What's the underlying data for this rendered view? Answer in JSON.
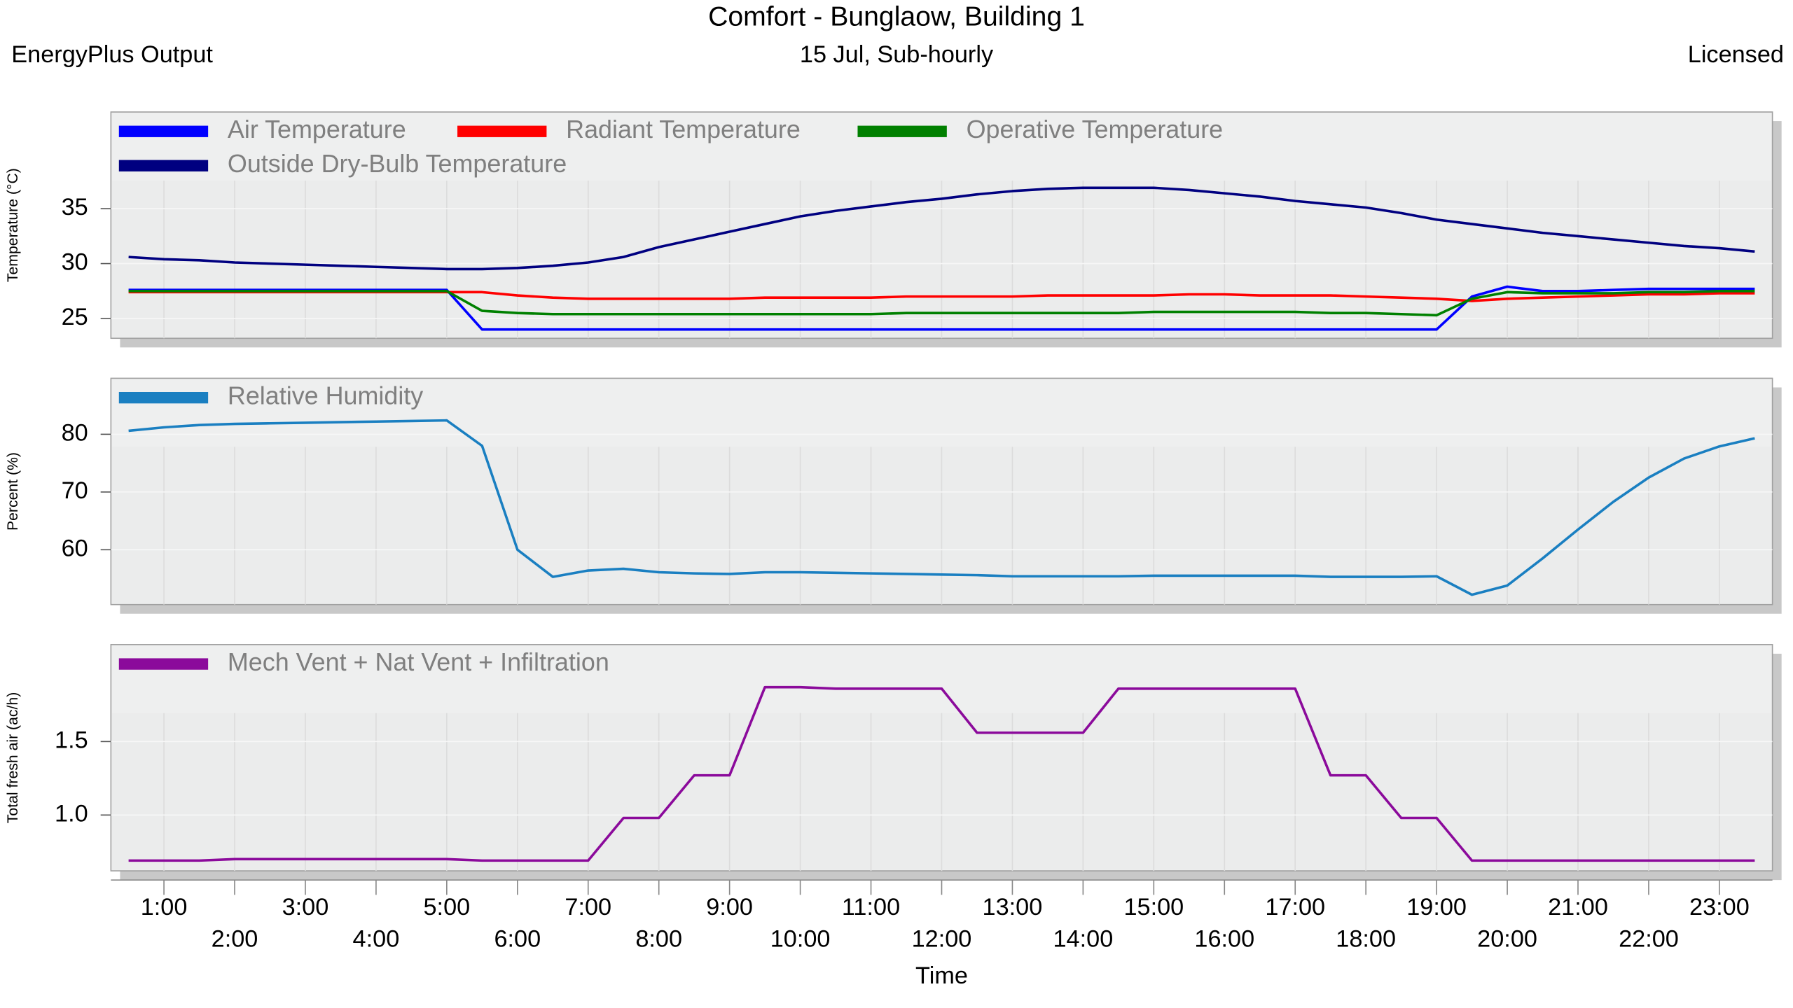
{
  "header": {
    "title": "Comfort - Bunglaow, Building 1",
    "left": "EnergyPlus Output",
    "center": "15 Jul, Sub-hourly",
    "right": "Licensed"
  },
  "chart_data": [
    {
      "type": "line",
      "y_label": "Temperature (°C)",
      "xlim": [
        0.25,
        23.75
      ],
      "ylim": [
        23.2,
        43.8
      ],
      "yticks": [
        35,
        30,
        25
      ],
      "x": [
        0.5,
        1,
        1.5,
        2,
        2.5,
        3,
        3.5,
        4,
        4.5,
        5,
        5.5,
        6,
        6.5,
        7,
        7.5,
        8,
        8.5,
        9,
        9.5,
        10,
        10.5,
        11,
        11.5,
        12,
        12.5,
        13,
        13.5,
        14,
        14.5,
        15,
        15.5,
        16,
        16.5,
        17,
        17.5,
        18,
        18.5,
        19,
        19.5,
        20,
        20.5,
        21,
        21.5,
        22,
        22.5,
        23,
        23.5
      ],
      "series": [
        {
          "name": "Air Temperature",
          "color": "#0000ff",
          "values": [
            27.6,
            27.6,
            27.6,
            27.6,
            27.6,
            27.6,
            27.6,
            27.6,
            27.6,
            27.6,
            24.0,
            24.0,
            24.0,
            24.0,
            24.0,
            24.0,
            24.0,
            24.0,
            24.0,
            24.0,
            24.0,
            24.0,
            24.0,
            24.0,
            24.0,
            24.0,
            24.0,
            24.0,
            24.0,
            24.0,
            24.0,
            24.0,
            24.0,
            24.0,
            24.0,
            24.0,
            24.0,
            24.0,
            27.0,
            27.9,
            27.5,
            27.5,
            27.6,
            27.7,
            27.7,
            27.7,
            27.7
          ]
        },
        {
          "name": "Radiant Temperature",
          "color": "#ff0000",
          "values": [
            27.4,
            27.4,
            27.4,
            27.4,
            27.4,
            27.4,
            27.4,
            27.4,
            27.4,
            27.4,
            27.4,
            27.1,
            26.9,
            26.8,
            26.8,
            26.8,
            26.8,
            26.8,
            26.9,
            26.9,
            26.9,
            26.9,
            27.0,
            27.0,
            27.0,
            27.0,
            27.1,
            27.1,
            27.1,
            27.1,
            27.2,
            27.2,
            27.1,
            27.1,
            27.1,
            27.0,
            26.9,
            26.8,
            26.6,
            26.8,
            26.9,
            27.0,
            27.1,
            27.2,
            27.2,
            27.3,
            27.3
          ]
        },
        {
          "name": "Operative Temperature",
          "color": "#008000",
          "values": [
            27.5,
            27.5,
            27.5,
            27.5,
            27.5,
            27.5,
            27.5,
            27.5,
            27.5,
            27.5,
            25.7,
            25.5,
            25.4,
            25.4,
            25.4,
            25.4,
            25.4,
            25.4,
            25.4,
            25.4,
            25.4,
            25.4,
            25.5,
            25.5,
            25.5,
            25.5,
            25.5,
            25.5,
            25.5,
            25.6,
            25.6,
            25.6,
            25.6,
            25.6,
            25.5,
            25.5,
            25.4,
            25.3,
            26.8,
            27.4,
            27.3,
            27.3,
            27.3,
            27.4,
            27.4,
            27.5,
            27.5
          ]
        },
        {
          "name": "Outside Dry-Bulb Temperature",
          "color": "#000080",
          "values": [
            30.6,
            30.4,
            30.3,
            30.1,
            30.0,
            29.9,
            29.8,
            29.7,
            29.6,
            29.5,
            29.5,
            29.6,
            29.8,
            30.1,
            30.6,
            31.5,
            32.2,
            32.9,
            33.6,
            34.3,
            34.8,
            35.2,
            35.6,
            35.9,
            36.3,
            36.6,
            36.8,
            36.9,
            36.9,
            36.9,
            36.7,
            36.4,
            36.1,
            35.7,
            35.4,
            35.1,
            34.6,
            34.0,
            33.6,
            33.2,
            32.8,
            32.5,
            32.2,
            31.9,
            31.6,
            31.4,
            31.1
          ]
        }
      ]
    },
    {
      "type": "line",
      "y_label": "Percent (%)",
      "xlim": [
        0.25,
        23.75
      ],
      "ylim": [
        50.5,
        89.7
      ],
      "yticks": [
        80,
        70,
        60
      ],
      "x": [
        0.5,
        1,
        1.5,
        2,
        2.5,
        3,
        3.5,
        4,
        4.5,
        5,
        5.5,
        6,
        6.5,
        7,
        7.5,
        8,
        8.5,
        9,
        9.5,
        10,
        10.5,
        11,
        11.5,
        12,
        12.5,
        13,
        13.5,
        14,
        14.5,
        15,
        15.5,
        16,
        16.5,
        17,
        17.5,
        18,
        18.5,
        19,
        19.5,
        20,
        20.5,
        21,
        21.5,
        22,
        22.5,
        23,
        23.5
      ],
      "series": [
        {
          "name": "Relative Humidity",
          "color": "#1a7fc1",
          "values": [
            80.6,
            81.2,
            81.6,
            81.8,
            81.9,
            82.0,
            82.1,
            82.2,
            82.3,
            82.4,
            78.0,
            60.0,
            55.3,
            56.4,
            56.7,
            56.1,
            55.9,
            55.8,
            56.1,
            56.1,
            56.0,
            55.9,
            55.8,
            55.7,
            55.6,
            55.4,
            55.4,
            55.4,
            55.4,
            55.5,
            55.5,
            55.5,
            55.5,
            55.5,
            55.3,
            55.3,
            55.3,
            55.4,
            52.2,
            53.8,
            58.5,
            63.5,
            68.3,
            72.5,
            75.8,
            77.9,
            79.3
          ]
        }
      ]
    },
    {
      "type": "line",
      "y_label": "Total fresh air (ac/h)",
      "x_label": "Time",
      "xlim": [
        0.25,
        23.75
      ],
      "ylim": [
        0.62,
        2.16
      ],
      "yticks": [
        1.5,
        {
          "value": 1,
          "label": "1.0"
        }
      ],
      "xticks": [
        {
          "value": 1,
          "label": "1:00"
        },
        {
          "value": 2,
          "label": "2:00"
        },
        {
          "value": 3,
          "label": "3:00"
        },
        {
          "value": 4,
          "label": "4:00"
        },
        {
          "value": 5,
          "label": "5:00"
        },
        {
          "value": 6,
          "label": "6:00"
        },
        {
          "value": 7,
          "label": "7:00"
        },
        {
          "value": 8,
          "label": "8:00"
        },
        {
          "value": 9,
          "label": "9:00"
        },
        {
          "value": 10,
          "label": "10:00"
        },
        {
          "value": 11,
          "label": "11:00"
        },
        {
          "value": 12,
          "label": "12:00"
        },
        {
          "value": 13,
          "label": "13:00"
        },
        {
          "value": 14,
          "label": "14:00"
        },
        {
          "value": 15,
          "label": "15:00"
        },
        {
          "value": 16,
          "label": "16:00"
        },
        {
          "value": 17,
          "label": "17:00"
        },
        {
          "value": 18,
          "label": "18:00"
        },
        {
          "value": 19,
          "label": "19:00"
        },
        {
          "value": 20,
          "label": "20:00"
        },
        {
          "value": 21,
          "label": "21:00"
        },
        {
          "value": 22,
          "label": "22:00"
        },
        {
          "value": 23,
          "label": "23:00"
        }
      ],
      "x": [
        0.5,
        1,
        1.5,
        2,
        2.5,
        3,
        3.5,
        4,
        4.5,
        5,
        5.5,
        6,
        6.5,
        7,
        7.5,
        8,
        8.5,
        9,
        9.5,
        10,
        10.5,
        11,
        11.5,
        12,
        12.5,
        13,
        13.5,
        14,
        14.5,
        15,
        15.5,
        16,
        16.5,
        17,
        17.5,
        18,
        18.5,
        19,
        19.5,
        20,
        20.5,
        21,
        21.5,
        22,
        22.5,
        23,
        23.5
      ],
      "series": [
        {
          "name": "Mech Vent + Nat Vent + Infiltration",
          "color": "#8b0a9b",
          "values": [
            0.69,
            0.69,
            0.69,
            0.7,
            0.7,
            0.7,
            0.7,
            0.7,
            0.7,
            0.7,
            0.69,
            0.69,
            0.69,
            0.69,
            0.98,
            0.98,
            1.27,
            1.27,
            1.87,
            1.87,
            1.86,
            1.86,
            1.86,
            1.86,
            1.56,
            1.56,
            1.56,
            1.56,
            1.86,
            1.86,
            1.86,
            1.86,
            1.86,
            1.86,
            1.27,
            1.27,
            0.98,
            0.98,
            0.69,
            0.69,
            0.69,
            0.69,
            0.69,
            0.69,
            0.69,
            0.69,
            0.69
          ]
        }
      ]
    }
  ]
}
